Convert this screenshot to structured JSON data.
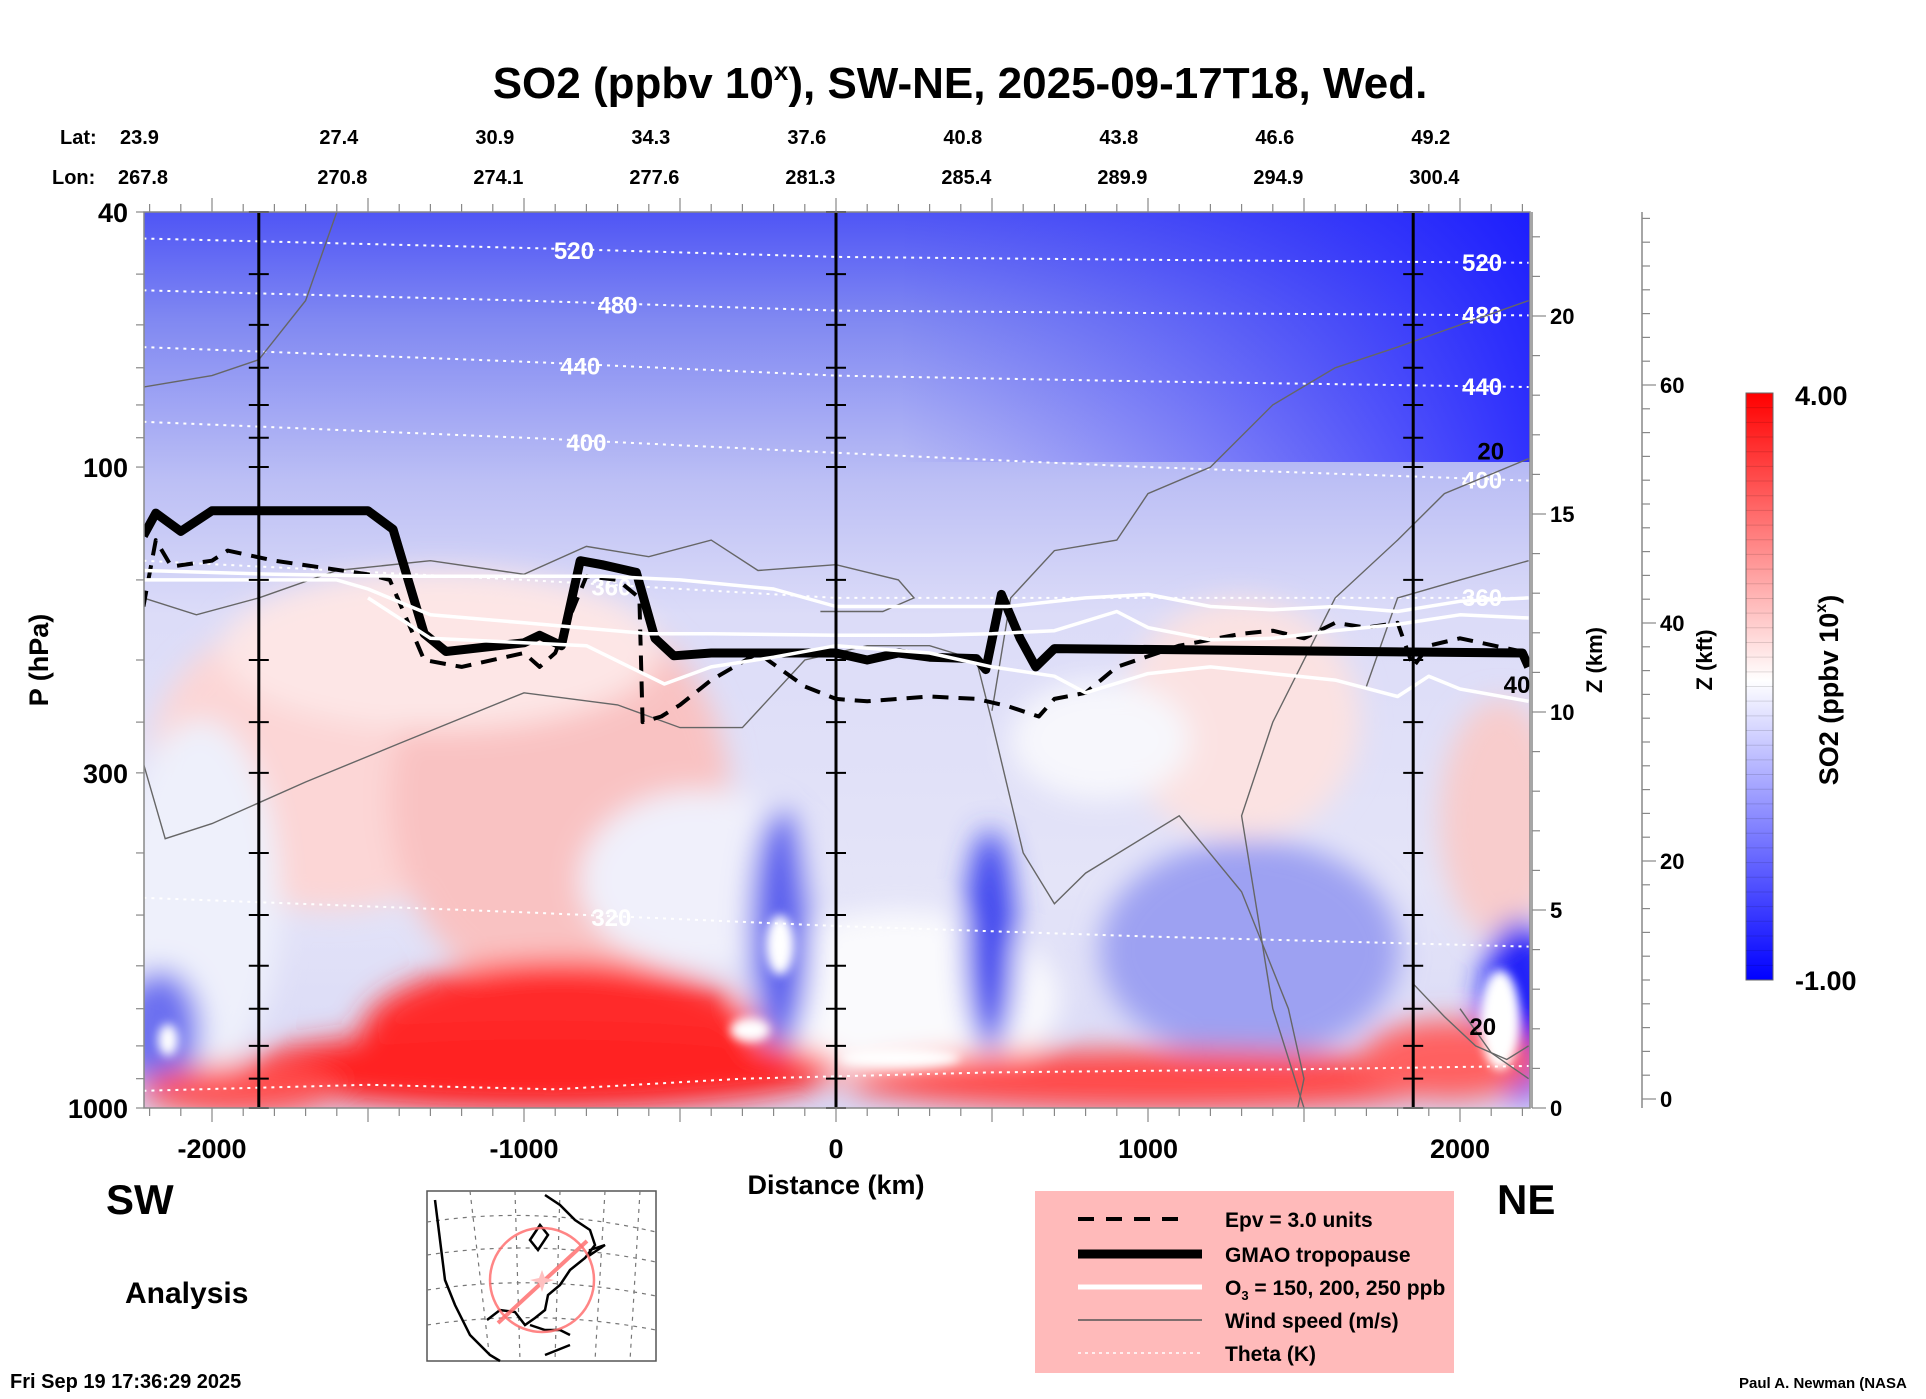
{
  "chart_data": {
    "type": "heatmap",
    "title": {
      "prefix": "SO2 (ppbv 10",
      "sup": "x",
      "suffix": "), SW-NE, 2025-09-17T18, Wed."
    },
    "xlabel": "Distance (km)",
    "ylabel": "P (hPa)",
    "xlim": [
      -2220,
      2220
    ],
    "ylim": [
      1000,
      40
    ],
    "yscale": "log",
    "x_ticks": [
      {
        "value": -2000,
        "label": "-2000"
      },
      {
        "value": -1000,
        "label": "-1000"
      },
      {
        "value": 0,
        "label": "0"
      },
      {
        "value": 1000,
        "label": "1000"
      },
      {
        "value": 2000,
        "label": "2000"
      }
    ],
    "y_ticks": [
      {
        "value": 40,
        "label": "40"
      },
      {
        "value": 100,
        "label": "100"
      },
      {
        "value": 300,
        "label": "300"
      },
      {
        "value": 1000,
        "label": "1000"
      }
    ],
    "z_km_axis": {
      "label": "Z (km)",
      "ticks": [
        {
          "value": 0,
          "label": "0"
        },
        {
          "value": 5,
          "label": "5"
        },
        {
          "value": 10,
          "label": "10"
        },
        {
          "value": 15,
          "label": "15"
        },
        {
          "value": 20,
          "label": "20"
        }
      ]
    },
    "z_kft_axis": {
      "label": "Z (kft)",
      "ticks": [
        {
          "value": 0,
          "label": "0"
        },
        {
          "value": 20,
          "label": "20"
        },
        {
          "value": 40,
          "label": "40"
        },
        {
          "value": 60,
          "label": "60"
        }
      ]
    },
    "lat_label": "Lat:",
    "lon_label": "Lon:",
    "lat_lon_ticks": [
      {
        "distance": -2220,
        "lat": "23.9",
        "lon": "267.8"
      },
      {
        "distance": -1720,
        "lat": "27.4",
        "lon": "270.8"
      },
      {
        "distance": -1220,
        "lat": "30.9",
        "lon": "274.1"
      },
      {
        "distance": -720,
        "lat": "34.3",
        "lon": "277.6"
      },
      {
        "distance": -220,
        "lat": "37.6",
        "lon": "281.3"
      },
      {
        "distance": 280,
        "lat": "40.8",
        "lon": "285.4"
      },
      {
        "distance": 780,
        "lat": "43.8",
        "lon": "289.9"
      },
      {
        "distance": 1280,
        "lat": "46.6",
        "lon": "294.9"
      },
      {
        "distance": 1780,
        "lat": "49.2",
        "lon": "300.4"
      }
    ],
    "reference_lines_km": [
      -1850,
      0,
      1850
    ],
    "colorbar": {
      "label_prefix": "SO2 (ppbv 10",
      "label_sup": "x",
      "label_suffix": ")",
      "min": -1.0,
      "max": 4.0,
      "min_label": "-1.00",
      "max_label": "4.00",
      "low_color": "#0000ff",
      "mid_color": "#ffffff",
      "high_color": "#ff0000"
    },
    "series": [
      {
        "name": "GMAO tropopause",
        "style": "thick-solid",
        "color": "#000000",
        "points": [
          [
            -2220,
            128
          ],
          [
            -2180,
            118
          ],
          [
            -2100,
            126
          ],
          [
            -2000,
            117
          ],
          [
            -1500,
            117
          ],
          [
            -1420,
            125
          ],
          [
            -1320,
            182
          ],
          [
            -1250,
            194
          ],
          [
            -1000,
            188
          ],
          [
            -950,
            183
          ],
          [
            -880,
            190
          ],
          [
            -820,
            140
          ],
          [
            -750,
            142
          ],
          [
            -640,
            146
          ],
          [
            -580,
            185
          ],
          [
            -520,
            197
          ],
          [
            -400,
            195
          ],
          [
            0,
            195
          ],
          [
            100,
            200
          ],
          [
            200,
            195
          ],
          [
            300,
            198
          ],
          [
            450,
            199
          ],
          [
            480,
            207
          ],
          [
            530,
            158
          ],
          [
            590,
            185
          ],
          [
            640,
            205
          ],
          [
            700,
            192
          ],
          [
            2200,
            195
          ],
          [
            2220,
            205
          ]
        ]
      },
      {
        "name": "Epv = 3.0 units",
        "style": "dashed",
        "color": "#000000",
        "points": [
          [
            -2220,
            165
          ],
          [
            -2180,
            130
          ],
          [
            -2130,
            143
          ],
          [
            -2000,
            140
          ],
          [
            -1950,
            135
          ],
          [
            -1800,
            140
          ],
          [
            -1500,
            147
          ],
          [
            -1430,
            150
          ],
          [
            -1320,
            200
          ],
          [
            -1200,
            205
          ],
          [
            -1000,
            195
          ],
          [
            -950,
            205
          ],
          [
            -900,
            195
          ],
          [
            -800,
            148
          ],
          [
            -700,
            150
          ],
          [
            -630,
            160
          ],
          [
            -620,
            250
          ],
          [
            -560,
            245
          ],
          [
            -500,
            235
          ],
          [
            -400,
            215
          ],
          [
            -250,
            195
          ],
          [
            -100,
            220
          ],
          [
            0,
            230
          ],
          [
            100,
            232
          ],
          [
            300,
            228
          ],
          [
            450,
            230
          ],
          [
            550,
            236
          ],
          [
            650,
            245
          ],
          [
            700,
            230
          ],
          [
            800,
            225
          ],
          [
            900,
            205
          ],
          [
            1100,
            190
          ],
          [
            1300,
            182
          ],
          [
            1400,
            180
          ],
          [
            1500,
            185
          ],
          [
            1600,
            175
          ],
          [
            1700,
            178
          ],
          [
            1800,
            175
          ],
          [
            1850,
            205
          ],
          [
            1900,
            190
          ],
          [
            2000,
            185
          ],
          [
            2220,
            195
          ]
        ]
      },
      {
        "name": "O3 = 150 ppb",
        "style": "white",
        "color": "#ffffff",
        "points": [
          [
            -2220,
            145
          ],
          [
            -1800,
            147
          ],
          [
            -1400,
            148
          ],
          [
            -1000,
            148
          ],
          [
            -750,
            148
          ],
          [
            -500,
            150
          ],
          [
            -200,
            155
          ],
          [
            0,
            165
          ],
          [
            300,
            165
          ],
          [
            550,
            165
          ],
          [
            800,
            160
          ],
          [
            1000,
            158
          ],
          [
            1200,
            165
          ],
          [
            1400,
            167
          ],
          [
            1600,
            165
          ],
          [
            1800,
            168
          ],
          [
            2000,
            162
          ],
          [
            2220,
            160
          ]
        ]
      },
      {
        "name": "O3 = 200 ppb",
        "style": "white",
        "color": "#ffffff",
        "points": [
          [
            -2220,
            150
          ],
          [
            -1600,
            150
          ],
          [
            -1500,
            155
          ],
          [
            -1300,
            170
          ],
          [
            -1000,
            175
          ],
          [
            -600,
            182
          ],
          [
            -400,
            182
          ],
          [
            0,
            183
          ],
          [
            300,
            183
          ],
          [
            500,
            182
          ],
          [
            700,
            180
          ],
          [
            900,
            168
          ],
          [
            1000,
            178
          ],
          [
            1200,
            186
          ],
          [
            1400,
            185
          ],
          [
            1600,
            180
          ],
          [
            1800,
            176
          ],
          [
            2000,
            170
          ],
          [
            2220,
            172
          ]
        ]
      },
      {
        "name": "O3 = 250 ppb",
        "style": "white",
        "color": "#ffffff",
        "points": [
          [
            -1500,
            160
          ],
          [
            -1300,
            185
          ],
          [
            -800,
            190
          ],
          [
            -550,
            218
          ],
          [
            -400,
            205
          ],
          [
            -200,
            198
          ],
          [
            0,
            190
          ],
          [
            300,
            195
          ],
          [
            500,
            205
          ],
          [
            700,
            212
          ],
          [
            800,
            225
          ],
          [
            1000,
            210
          ],
          [
            1200,
            205
          ],
          [
            1400,
            210
          ],
          [
            1600,
            215
          ],
          [
            1800,
            228
          ],
          [
            1900,
            212
          ],
          [
            2000,
            222
          ],
          [
            2220,
            232
          ]
        ]
      }
    ],
    "wind_contours": [
      {
        "points": [
          [
            -2220,
            75
          ],
          [
            -2000,
            72
          ],
          [
            -1850,
            68
          ],
          [
            -1700,
            55
          ],
          [
            -1600,
            40
          ]
        ]
      },
      {
        "points": [
          [
            -2220,
            160
          ],
          [
            -2050,
            170
          ],
          [
            -1850,
            160
          ],
          [
            -1600,
            145
          ],
          [
            -1300,
            140
          ],
          [
            -1000,
            147
          ],
          [
            -800,
            133
          ],
          [
            -600,
            138
          ],
          [
            -400,
            130
          ],
          [
            -250,
            145
          ],
          [
            0,
            142
          ],
          [
            200,
            150
          ],
          [
            250,
            160
          ],
          [
            150,
            168
          ],
          [
            -50,
            168
          ]
        ]
      },
      {
        "points": [
          [
            -2220,
            290
          ],
          [
            -2150,
            380
          ],
          [
            -2000,
            360
          ],
          [
            -1700,
            310
          ],
          [
            -1400,
            270
          ],
          [
            -1000,
            225
          ],
          [
            -700,
            235
          ],
          [
            -500,
            255
          ],
          [
            -300,
            255
          ],
          [
            -100,
            200
          ],
          [
            100,
            190
          ],
          [
            300,
            190
          ],
          [
            450,
            200
          ],
          [
            500,
            250
          ],
          [
            600,
            400
          ],
          [
            700,
            480
          ],
          [
            800,
            430
          ],
          [
            1100,
            350
          ],
          [
            1300,
            460
          ],
          [
            1450,
            700
          ],
          [
            1500,
            900
          ],
          [
            1480,
            1000
          ]
        ]
      },
      {
        "points": [
          [
            500,
            240
          ],
          [
            560,
            160
          ],
          [
            700,
            135
          ],
          [
            900,
            130
          ],
          [
            1000,
            110
          ],
          [
            1200,
            100
          ],
          [
            1400,
            80
          ],
          [
            1600,
            70
          ],
          [
            1800,
            65
          ],
          [
            2000,
            60
          ],
          [
            2220,
            55
          ]
        ]
      },
      {
        "points": [
          [
            1500,
            1000
          ],
          [
            1400,
            700
          ],
          [
            1300,
            350
          ],
          [
            1400,
            250
          ],
          [
            1600,
            160
          ],
          [
            1800,
            130
          ],
          [
            1950,
            110
          ],
          [
            2220,
            97
          ]
        ]
      },
      {
        "points": [
          [
            1700,
            220
          ],
          [
            1800,
            160
          ],
          [
            2000,
            150
          ],
          [
            2220,
            140
          ]
        ]
      },
      {
        "points": [
          [
            1850,
            640
          ],
          [
            1950,
            720
          ],
          [
            2050,
            800
          ],
          [
            2150,
            840
          ],
          [
            2220,
            800
          ]
        ]
      },
      {
        "points": [
          [
            2000,
            700
          ],
          [
            2100,
            820
          ],
          [
            2220,
            900
          ]
        ]
      }
    ],
    "wind_labels": [
      {
        "distance": 2030,
        "pressure": 106,
        "label": "20"
      },
      {
        "distance": 2140,
        "pressure": 225,
        "label": "40"
      },
      {
        "distance": 2030,
        "pressure": 770,
        "label": "20"
      }
    ],
    "theta_contours": [
      {
        "level": "520",
        "pressures": [
          44,
          47,
          48
        ],
        "label_at": -840
      },
      {
        "level": "480",
        "pressures": [
          53,
          57,
          58
        ],
        "label_at": -700
      },
      {
        "level": "440",
        "pressures": [
          65,
          72,
          75
        ],
        "label_at": -820
      },
      {
        "level": "400",
        "pressures": [
          85,
          95,
          105
        ],
        "label_at": -800
      },
      {
        "level": "360",
        "pressures": [
          140,
          160,
          160
        ],
        "label_at": -720
      },
      {
        "level": "320",
        "pressures": [
          470,
          520,
          560
        ],
        "label_at": -720
      }
    ],
    "theta_right_labels": [
      "520",
      "480",
      "440",
      "400",
      "360"
    ]
  },
  "labels": {
    "sw": "SW",
    "ne": "NE",
    "analysis": "Analysis",
    "timestamp": "Fri Sep 19 17:36:29 2025",
    "credit": "Paul A. Newman (NASA"
  },
  "legend": {
    "epv": "Epv = 3.0 units",
    "tropopause": "GMAO tropopause",
    "o3_prefix": "O",
    "o3_sub": "3",
    "o3_suffix": " = 150, 200, 250 ppb",
    "wind": "Wind speed (m/s)",
    "theta": "Theta (K)",
    "background": "#ffbaba"
  }
}
